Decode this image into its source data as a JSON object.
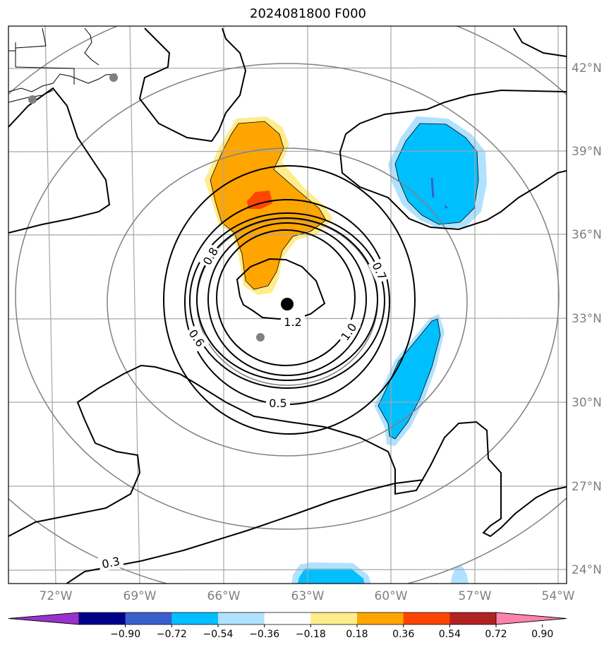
{
  "title": "2024081800 F000",
  "lat_labels": [
    "42°N",
    "39°N",
    "36°N",
    "33°N",
    "30°N",
    "27°N",
    "24°N"
  ],
  "lon_labels": [
    "72°W",
    "69°W",
    "66°W",
    "63°W",
    "60°W",
    "57°W",
    "54°W"
  ],
  "contour_labels": [
    "0.8",
    "0.7",
    "1.2",
    "1.0",
    "0.6",
    "0.5",
    "0.3"
  ],
  "colorbar": {
    "colors": [
      "#9932cc",
      "#00008b",
      "#3a5fcd",
      "#00bfff",
      "#b0e2ff",
      "#ffffff",
      "#ffec8b",
      "#ffa500",
      "#ff4500",
      "#b22222",
      "#ff82ab"
    ],
    "tick_labels": [
      "−0.90",
      "−0.72",
      "−0.54",
      "−0.36",
      "−0.18",
      "0.18",
      "0.36",
      "0.54",
      "0.72",
      "0.90"
    ]
  },
  "markers": {
    "center": "storm-center-dot",
    "stations": [
      "grey-station-dot"
    ]
  }
}
